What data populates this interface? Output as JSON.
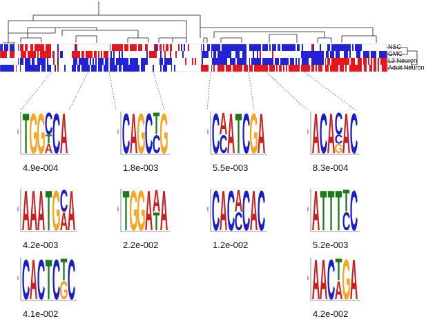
{
  "heatmap": {
    "rows": [
      "NSC",
      "GMC",
      "L3 Neuron",
      "Adult Neuron"
    ],
    "colors": {
      "high": "#e8161b",
      "low": "#2222d8",
      "mid": "#ffffff"
    }
  },
  "logo_axis_label": "bits",
  "nucleotide_colors": {
    "A": "#cc1f1f",
    "C": "#1b1fc9",
    "G": "#f5a623",
    "T": "#1a7a1a"
  },
  "motifs": [
    {
      "id": "m1",
      "pvalue": "4.9e-004",
      "sequence": "TGGCCA",
      "secondary": [
        "",
        "",
        "",
        "TA",
        "",
        ""
      ]
    },
    {
      "id": "m2",
      "pvalue": "1.8e-003",
      "sequence": "CAGCTG",
      "secondary": [
        "",
        "",
        "",
        "",
        "C",
        ""
      ]
    },
    {
      "id": "m3",
      "pvalue": "5.5e-003",
      "sequence": "CAATCGA",
      "secondary": [
        "",
        "C",
        "",
        "",
        "",
        "",
        ""
      ]
    },
    {
      "id": "m4",
      "pvalue": "8.3e-004",
      "sequence": "ACACAC",
      "secondary": [
        "",
        "",
        "",
        "CG",
        "",
        ""
      ]
    },
    {
      "id": "m5",
      "pvalue": "4.2e-003",
      "sequence": "AAATGCA",
      "secondary": [
        "",
        "",
        "",
        "",
        "",
        "A",
        ""
      ]
    },
    {
      "id": "m6",
      "pvalue": "2.2e-002",
      "sequence": "TGGAAA",
      "secondary": [
        "",
        "",
        "",
        "",
        "T",
        ""
      ]
    },
    {
      "id": "m7",
      "pvalue": "1.2e-002",
      "sequence": "CACACAC",
      "secondary": [
        "",
        "",
        "",
        "C",
        "",
        "",
        ""
      ]
    },
    {
      "id": "m8",
      "pvalue": "5.2e-003",
      "sequence": "ATTTTC",
      "secondary": [
        "",
        "",
        "",
        "",
        "C",
        ""
      ]
    },
    {
      "id": "m9",
      "pvalue": "4.1e-002",
      "sequence": "CACTCTC",
      "secondary": [
        "",
        "",
        "",
        "",
        "",
        "G",
        ""
      ]
    },
    {
      "id": "m10",
      "pvalue": "4.2e-002",
      "sequence": "AACTGA",
      "secondary": [
        "",
        "",
        "",
        "A",
        "",
        ""
      ]
    }
  ]
}
